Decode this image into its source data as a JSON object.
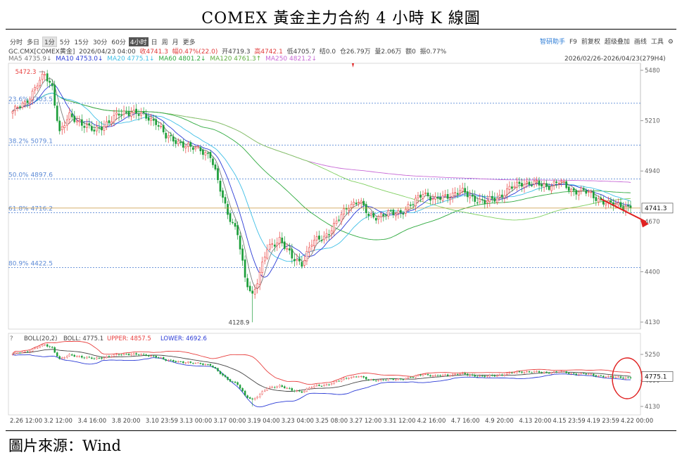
{
  "title": "COMEX 黃金主力合約 4 小時 K 線圖",
  "footer": "圖片來源：Wind",
  "toolbar": {
    "periods": [
      "分时",
      "多日",
      "1分",
      "5分",
      "15分",
      "30分",
      "60分",
      "4小时",
      "日",
      "周",
      "月",
      "更多"
    ],
    "selected": "4小时",
    "right_items": [
      "智研助手",
      "F9",
      "前复权",
      "超级叠加",
      "画线",
      "工具"
    ],
    "settings_icon": "gear-icon",
    "collapse_icon": "chevron-up-icon",
    "expand_icon": "chevron-down-icon"
  },
  "info_line1": {
    "symbol": "GC.CMX[COMEX黄金]",
    "date": "2026/04/23 04:00",
    "close": "收4741.3",
    "change": "幅0.47%(22.0)",
    "open": "开4719.3",
    "high": "高4742.1",
    "low": "低4705.7",
    "settle": "结0.0",
    "oi": "仓26.79万",
    "volume": "量2.06万",
    "amount": "额0",
    "amplitude": "振0.77%"
  },
  "info_line2": {
    "ma5": "MA5 4735.9↓",
    "ma10": "MA10 4753.0↓",
    "ma20": "MA20 4775.1↓",
    "ma60": "MA60 4801.2↓",
    "ma120": "MA120 4761.3↑",
    "ma250": "MA250 4821.2↓",
    "range": "2026/02/26-2026/04/23(279H4)"
  },
  "colors": {
    "up": "#e8403f",
    "down": "#1d9e3a",
    "ma5": "#7b7b7b",
    "ma10": "#2b3bd6",
    "ma20": "#3fbfe6",
    "ma60": "#2faa3f",
    "ma120": "#7fcf5f",
    "ma250": "#c86ad6",
    "fib": "#5c8ad6",
    "priceline": "#c8963a",
    "arrow": "#e02020",
    "circle": "#e02020"
  },
  "chart_data": [
    {
      "type": "candlestick",
      "title": "",
      "ylim": [
        4130,
        5480
      ],
      "yticks": [
        "5480",
        "5210",
        "4940",
        "4670",
        "4400",
        "4130"
      ],
      "xticks": [
        "2.26 12:00",
        "3.2 12:00",
        "3.4 16:00",
        "3.8 20:00",
        "3.10 23:59",
        "3.13 00:00",
        "3.17 00:00",
        "3.19 04:00",
        "3.23 04:00",
        "3.25 08:00",
        "3.27 12:00",
        "3.31 12:00",
        "4.2 16:00",
        "4.7 16:00",
        "4.9 20:00",
        "4.13 20:00",
        "4.15 23:59",
        "4.19 23:59",
        "4.22 00:00"
      ],
      "fib_levels": [
        {
          "label": "23.6%  5303.5",
          "value": 5303.5
        },
        {
          "label": "38.2%  5079.1",
          "value": 5079.1
        },
        {
          "label": "50.0%  4897.6",
          "value": 4897.6
        },
        {
          "label": "61.8%  4716.2",
          "value": 4716.2
        },
        {
          "label": "80.9%  4422.5",
          "value": 4422.5
        }
      ],
      "high_label": "5472.3",
      "low_label": "4128.9",
      "last_price": "4741.3",
      "anchors": [
        [
          0,
          5260
        ],
        [
          5,
          5300
        ],
        [
          10,
          5410
        ],
        [
          13,
          5450
        ],
        [
          16,
          5390
        ],
        [
          19,
          5150
        ],
        [
          23,
          5230
        ],
        [
          28,
          5200
        ],
        [
          33,
          5150
        ],
        [
          38,
          5200
        ],
        [
          43,
          5240
        ],
        [
          48,
          5265
        ],
        [
          53,
          5230
        ],
        [
          58,
          5210
        ],
        [
          62,
          5120
        ],
        [
          67,
          5100
        ],
        [
          72,
          5060
        ],
        [
          76,
          5060
        ],
        [
          80,
          5020
        ],
        [
          83,
          4880
        ],
        [
          87,
          4720
        ],
        [
          91,
          4600
        ],
        [
          94,
          4360
        ],
        [
          97,
          4280
        ],
        [
          100,
          4390
        ],
        [
          103,
          4520
        ],
        [
          108,
          4580
        ],
        [
          113,
          4470
        ],
        [
          117,
          4450
        ],
        [
          121,
          4550
        ],
        [
          126,
          4590
        ],
        [
          131,
          4660
        ],
        [
          136,
          4760
        ],
        [
          140,
          4780
        ],
        [
          144,
          4700
        ],
        [
          148,
          4700
        ],
        [
          153,
          4710
        ],
        [
          158,
          4730
        ],
        [
          162,
          4760
        ],
        [
          166,
          4830
        ],
        [
          171,
          4780
        ],
        [
          176,
          4810
        ],
        [
          181,
          4830
        ],
        [
          186,
          4800
        ],
        [
          191,
          4770
        ],
        [
          196,
          4800
        ],
        [
          201,
          4840
        ],
        [
          206,
          4880
        ],
        [
          211,
          4870
        ],
        [
          216,
          4860
        ],
        [
          221,
          4880
        ],
        [
          226,
          4840
        ],
        [
          231,
          4830
        ],
        [
          236,
          4800
        ],
        [
          241,
          4760
        ],
        [
          246,
          4760
        ],
        [
          250,
          4741
        ]
      ],
      "ma_lines": [
        "MA5",
        "MA10",
        "MA20",
        "MA60",
        "MA120",
        "MA250"
      ]
    },
    {
      "type": "boll",
      "legend": {
        "label": "BOLL(20,2)",
        "mid": "BOLL: 4775.1",
        "upper": "UPPER: 4857.5",
        "lower": "LOWER: 4692.6"
      },
      "yticks": [
        "5250",
        "4690",
        "4130"
      ],
      "ylim": [
        4130,
        5250
      ],
      "last_value": "4775.1"
    }
  ]
}
